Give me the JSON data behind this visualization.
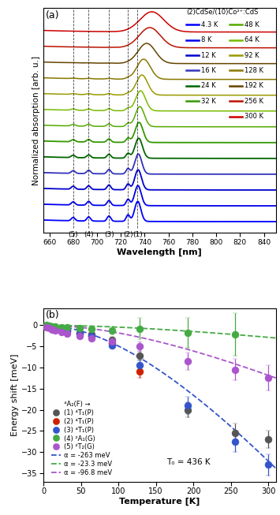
{
  "title_a": "(2)CdSe/(10)Co²⁺:CdS",
  "legend_temps": [
    "4.3 K",
    "8 K",
    "12 K",
    "16 K",
    "24 K",
    "32 K",
    "48 K",
    "64 K",
    "92 K",
    "128 K",
    "192 K",
    "256 K",
    "300 K"
  ],
  "legend_colors": [
    "#0000ff",
    "#0000ee",
    "#0000cc",
    "#3333bb",
    "#006600",
    "#339900",
    "#55aa00",
    "#77bb00",
    "#999900",
    "#887700",
    "#664400",
    "#bb1100",
    "#cc0000"
  ],
  "dashed_lines_nm": [
    680,
    693,
    710,
    726,
    734
  ],
  "dashed_labels": [
    "(5)",
    "(4)",
    "(3)",
    "(2)",
    "(1)"
  ],
  "wavelength_range": [
    655,
    850
  ],
  "xlabel_a": "Wavelength [nm]",
  "ylabel_a": "Normalized absorption [arb. u.]",
  "panel_a_label": "(a)",
  "panel_b_label": "(b)",
  "xlabel_b": "Temperature [K]",
  "ylabel_b": "Energy shift [meV]",
  "ylim_b": [
    -37,
    4
  ],
  "xlim_b": [
    0,
    310
  ],
  "T0_text": "T₀ = 436 K",
  "legend_b_title": "⁴A₂(F) →",
  "series": [
    {
      "label": "(1) ⁴T₁(P)",
      "color": "#555555",
      "temperatures": [
        4.3,
        8,
        12,
        16,
        24,
        32,
        48,
        64,
        92,
        128,
        192,
        256,
        300
      ],
      "energies": [
        -0.3,
        -0.5,
        -0.6,
        -0.8,
        -1.0,
        -1.2,
        -1.8,
        -2.2,
        -3.5,
        -7.2,
        -20.0,
        -25.5,
        -27.0
      ],
      "yerr": [
        0.2,
        0.2,
        0.2,
        0.2,
        0.2,
        0.3,
        0.4,
        0.4,
        0.8,
        1.2,
        1.8,
        2.2,
        2.0
      ]
    },
    {
      "label": "(2) ⁴T₁(P)",
      "color": "#cc2200",
      "temperatures": [
        4.3,
        8,
        12,
        16,
        24,
        32,
        48,
        64,
        92,
        128
      ],
      "energies": [
        -0.2,
        -0.4,
        -0.5,
        -0.7,
        -1.1,
        -1.4,
        -2.0,
        -2.5,
        -4.2,
        -11.0
      ],
      "yerr": [
        0.2,
        0.2,
        0.2,
        0.2,
        0.2,
        0.3,
        0.4,
        0.4,
        0.8,
        1.5
      ]
    },
    {
      "label": "(3) ⁴T₁(P)",
      "color": "#3355cc",
      "temperatures": [
        4.3,
        8,
        12,
        16,
        24,
        32,
        48,
        64,
        92,
        128,
        192,
        256,
        300
      ],
      "energies": [
        -0.2,
        -0.3,
        -0.5,
        -0.7,
        -1.0,
        -1.3,
        -2.0,
        -2.6,
        -4.8,
        -9.5,
        -19.0,
        -27.5,
        -33.0
      ],
      "yerr": [
        0.2,
        0.2,
        0.2,
        0.2,
        0.2,
        0.3,
        0.4,
        0.4,
        0.8,
        1.2,
        2.0,
        2.5,
        2.5
      ]
    },
    {
      "label": "(4) ²A₁(G)",
      "color": "#44aa44",
      "temperatures": [
        4.3,
        8,
        12,
        16,
        24,
        32,
        48,
        64,
        92,
        128,
        192,
        256
      ],
      "energies": [
        0.0,
        -0.1,
        -0.2,
        -0.3,
        -0.4,
        -0.5,
        -0.7,
        -0.9,
        -1.2,
        -0.8,
        -1.8,
        -2.2
      ],
      "yerr": [
        0.2,
        0.2,
        0.2,
        0.2,
        0.2,
        0.3,
        0.4,
        0.4,
        1.0,
        2.5,
        3.5,
        5.0
      ]
    },
    {
      "label": "(5) ²T₂(G)",
      "color": "#aa55cc",
      "temperatures": [
        4.3,
        8,
        12,
        16,
        24,
        32,
        48,
        64,
        92,
        128,
        192,
        256,
        300
      ],
      "energies": [
        -0.5,
        -0.7,
        -1.0,
        -1.2,
        -1.6,
        -2.0,
        -2.5,
        -3.0,
        -3.8,
        -5.0,
        -8.5,
        -10.5,
        -12.5
      ],
      "yerr": [
        0.2,
        0.2,
        0.2,
        0.2,
        0.2,
        0.3,
        0.4,
        0.4,
        0.8,
        1.2,
        2.0,
        2.5,
        3.0
      ]
    }
  ],
  "fit_blue_alpha": -263,
  "fit_blue_T0": 436,
  "fit_blue_color": "#3355cc",
  "fit_green_alpha": -23.3,
  "fit_green_T0": 436,
  "fit_green_color": "#44aa44",
  "fit_magenta_alpha": -96.8,
  "fit_magenta_T0": 436,
  "fit_magenta_color": "#aa55cc",
  "background_color": "#ffffff",
  "xticks_a": [
    660,
    680,
    700,
    720,
    740,
    760,
    780,
    800,
    820,
    840
  ],
  "xticks_b": [
    0,
    50,
    100,
    150,
    200,
    250,
    300
  ],
  "yticks_b": [
    0,
    -5,
    -10,
    -15,
    -20,
    -25,
    -30,
    -35
  ]
}
